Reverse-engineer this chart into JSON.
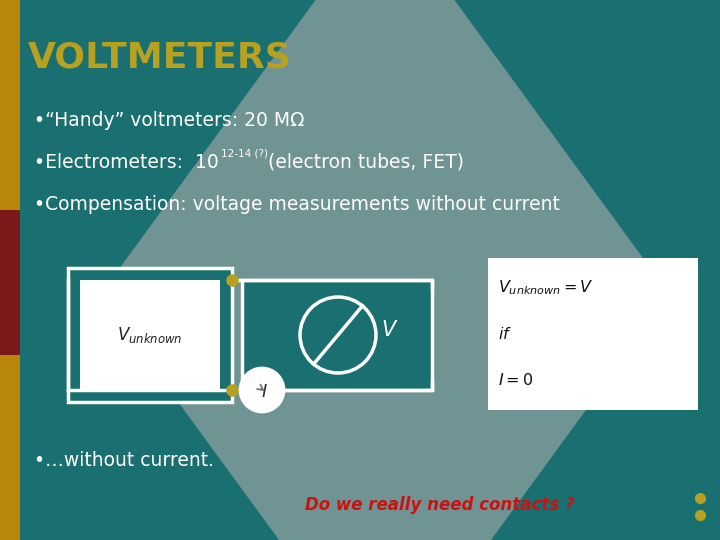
{
  "title": "VOLTMETERS",
  "title_color": "#B8A020",
  "bg_color": "#1a7070",
  "left_bar_top_color": "#B8860B",
  "dark_red_bar_color": "#7a1a1a",
  "diamond_color": "#7a9898",
  "bullet1": "•“Handy” voltmeters: 20 MΩ",
  "bullet2_pre": "•Electrometers:  10",
  "bullet2_sup": "12-14 (?)",
  "bullet2_post": " (electron tubes, FET)",
  "bullet3": "•Compensation: voltage measurements without current",
  "bullet4": "•…without current.",
  "contacts_text": "Do we really need contacts ?",
  "contacts_color": "#cc1111",
  "white": "#ffffff",
  "gold": "#B8A020",
  "formula_bg": "#ffffff"
}
